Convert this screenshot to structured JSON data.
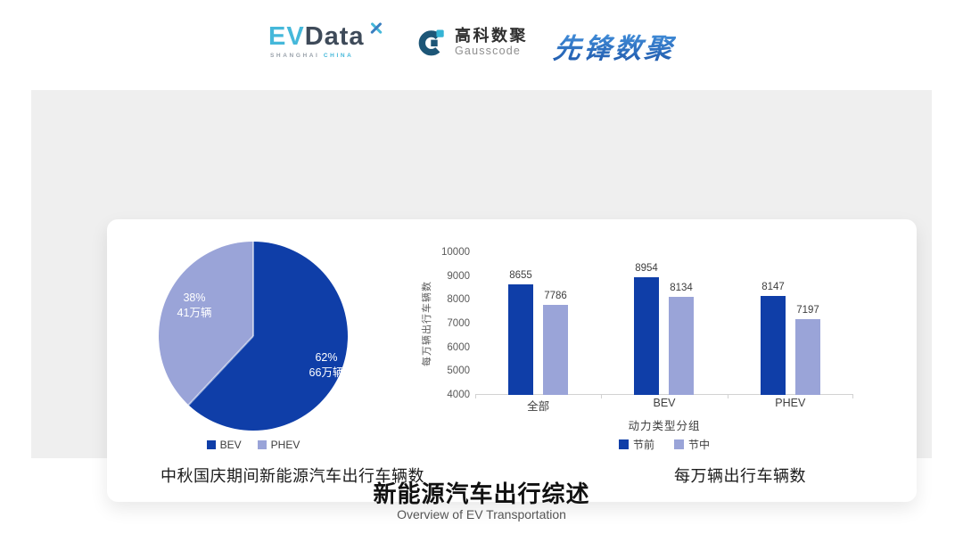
{
  "header": {
    "evdata_logo": {
      "part1": "EV",
      "part2": "Data",
      "tagline_left": "SHANGHAI",
      "tagline_right": "CHINA"
    },
    "gausscode_logo": {
      "name_cn": "高科数聚",
      "name_en": "Gausscode"
    },
    "pioneer_logo": {
      "name": "先锋数聚"
    }
  },
  "colors": {
    "series_dark": "#0f3ea8",
    "series_light": "#9aa4d8",
    "panel_bg": "#efefef",
    "evdata_cyan": "#45b8da",
    "evdata_slate": "#3e4a59",
    "gausscode_dark": "#1d5677",
    "gausscode_cyan": "#35b4d5",
    "pioneer_blue": "#2d7bd0"
  },
  "chart_data": [
    {
      "type": "pie",
      "title": "中秋国庆期间新能源汽车出行车辆数",
      "start_angle_deg": 0,
      "legend_position": "bottom",
      "slices": [
        {
          "label": "BEV",
          "pct": 62,
          "pct_label": "62%",
          "amount_label": "66万辆",
          "color": "#0f3ea8"
        },
        {
          "label": "PHEV",
          "pct": 38,
          "pct_label": "38%",
          "amount_label": "41万辆",
          "color": "#9aa4d8"
        }
      ],
      "legend": [
        "BEV",
        "PHEV"
      ]
    },
    {
      "type": "bar",
      "title": "每万辆出行车辆数",
      "categories": [
        "全部",
        "BEV",
        "PHEV"
      ],
      "series": [
        {
          "name": "节前",
          "color": "#0f3ea8",
          "values": [
            8655,
            8954,
            8147
          ]
        },
        {
          "name": "节中",
          "color": "#9aa4d8",
          "values": [
            7786,
            8134,
            7197
          ]
        }
      ],
      "xlabel": "动力类型分组",
      "ylabel": "每万辆出行车辆数",
      "ylim": [
        4000,
        10000
      ],
      "yticks": [
        10000,
        9000,
        8000,
        7000,
        6000,
        5000,
        4000
      ],
      "grid": false,
      "legend_position": "bottom"
    }
  ],
  "footer": {
    "title": "新能源汽车出行综述",
    "subtitle": "Overview of EV Transportation"
  }
}
